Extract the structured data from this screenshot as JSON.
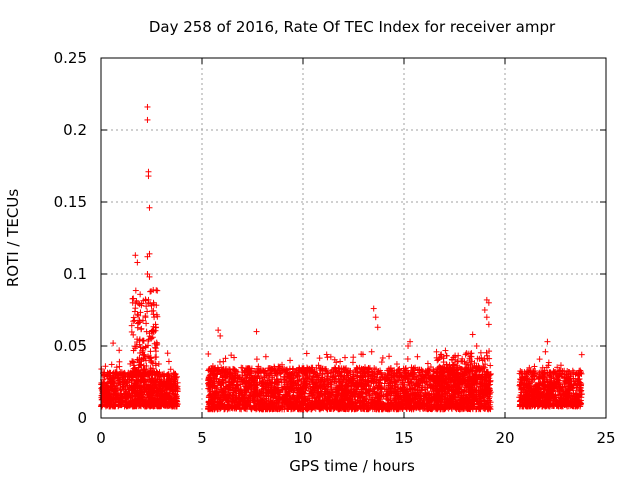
{
  "chart_data": {
    "type": "scatter",
    "title": "Day 258 of 2016, Rate Of TEC Index for receiver ampr",
    "xlabel": "GPS time / hours",
    "ylabel": "ROTI / TECUs",
    "xlim": [
      0,
      25
    ],
    "ylim": [
      0,
      0.25
    ],
    "grid": true,
    "marker": "+",
    "color": "#ff0000",
    "x_ticks": [
      {
        "value": 0,
        "label": "0"
      },
      {
        "value": 5,
        "label": "5"
      },
      {
        "value": 10,
        "label": "10"
      },
      {
        "value": 15,
        "label": "15"
      },
      {
        "value": 20,
        "label": "20"
      },
      {
        "value": 25,
        "label": "25"
      }
    ],
    "y_ticks": [
      {
        "value": 0,
        "label": "0"
      },
      {
        "value": 0.05,
        "label": "0.05"
      },
      {
        "value": 0.1,
        "label": "0.1"
      },
      {
        "value": 0.15,
        "label": "0.15"
      },
      {
        "value": 0.2,
        "label": "0.2"
      },
      {
        "value": 0.25,
        "label": "0.25"
      }
    ],
    "segments": [
      {
        "x_start": 0.0,
        "x_end": 3.8,
        "baseline": [
          0.008,
          0.032
        ]
      },
      {
        "x_start": 5.3,
        "x_end": 19.3,
        "baseline": [
          0.006,
          0.035
        ]
      },
      {
        "x_start": 20.7,
        "x_end": 23.8,
        "baseline": [
          0.008,
          0.033
        ]
      }
    ],
    "notable_points": [
      {
        "x": 2.3,
        "y": 0.216
      },
      {
        "x": 2.3,
        "y": 0.207
      },
      {
        "x": 2.35,
        "y": 0.171
      },
      {
        "x": 2.35,
        "y": 0.168
      },
      {
        "x": 2.4,
        "y": 0.146
      },
      {
        "x": 2.4,
        "y": 0.114
      },
      {
        "x": 2.3,
        "y": 0.112
      },
      {
        "x": 1.7,
        "y": 0.113
      },
      {
        "x": 1.8,
        "y": 0.108
      },
      {
        "x": 2.3,
        "y": 0.1
      },
      {
        "x": 2.4,
        "y": 0.098
      },
      {
        "x": 2.6,
        "y": 0.08
      },
      {
        "x": 2.5,
        "y": 0.078
      },
      {
        "x": 1.6,
        "y": 0.083
      },
      {
        "x": 1.9,
        "y": 0.079
      },
      {
        "x": 2.6,
        "y": 0.072
      },
      {
        "x": 2.2,
        "y": 0.07
      },
      {
        "x": 2.7,
        "y": 0.065
      },
      {
        "x": 2.0,
        "y": 0.062
      },
      {
        "x": 2.5,
        "y": 0.06
      },
      {
        "x": 5.8,
        "y": 0.061
      },
      {
        "x": 5.9,
        "y": 0.057
      },
      {
        "x": 7.7,
        "y": 0.06
      },
      {
        "x": 13.5,
        "y": 0.076
      },
      {
        "x": 13.6,
        "y": 0.07
      },
      {
        "x": 13.7,
        "y": 0.063
      },
      {
        "x": 13.4,
        "y": 0.046
      },
      {
        "x": 15.3,
        "y": 0.053
      },
      {
        "x": 15.2,
        "y": 0.05
      },
      {
        "x": 18.4,
        "y": 0.058
      },
      {
        "x": 18.6,
        "y": 0.05
      },
      {
        "x": 19.1,
        "y": 0.082
      },
      {
        "x": 19.2,
        "y": 0.08
      },
      {
        "x": 19.0,
        "y": 0.075
      },
      {
        "x": 19.1,
        "y": 0.07
      },
      {
        "x": 19.2,
        "y": 0.065
      },
      {
        "x": 22.1,
        "y": 0.053
      },
      {
        "x": 22.0,
        "y": 0.046
      },
      {
        "x": 23.8,
        "y": 0.044
      },
      {
        "x": 0.6,
        "y": 0.052
      },
      {
        "x": 0.9,
        "y": 0.047
      },
      {
        "x": 3.3,
        "y": 0.045
      }
    ]
  }
}
